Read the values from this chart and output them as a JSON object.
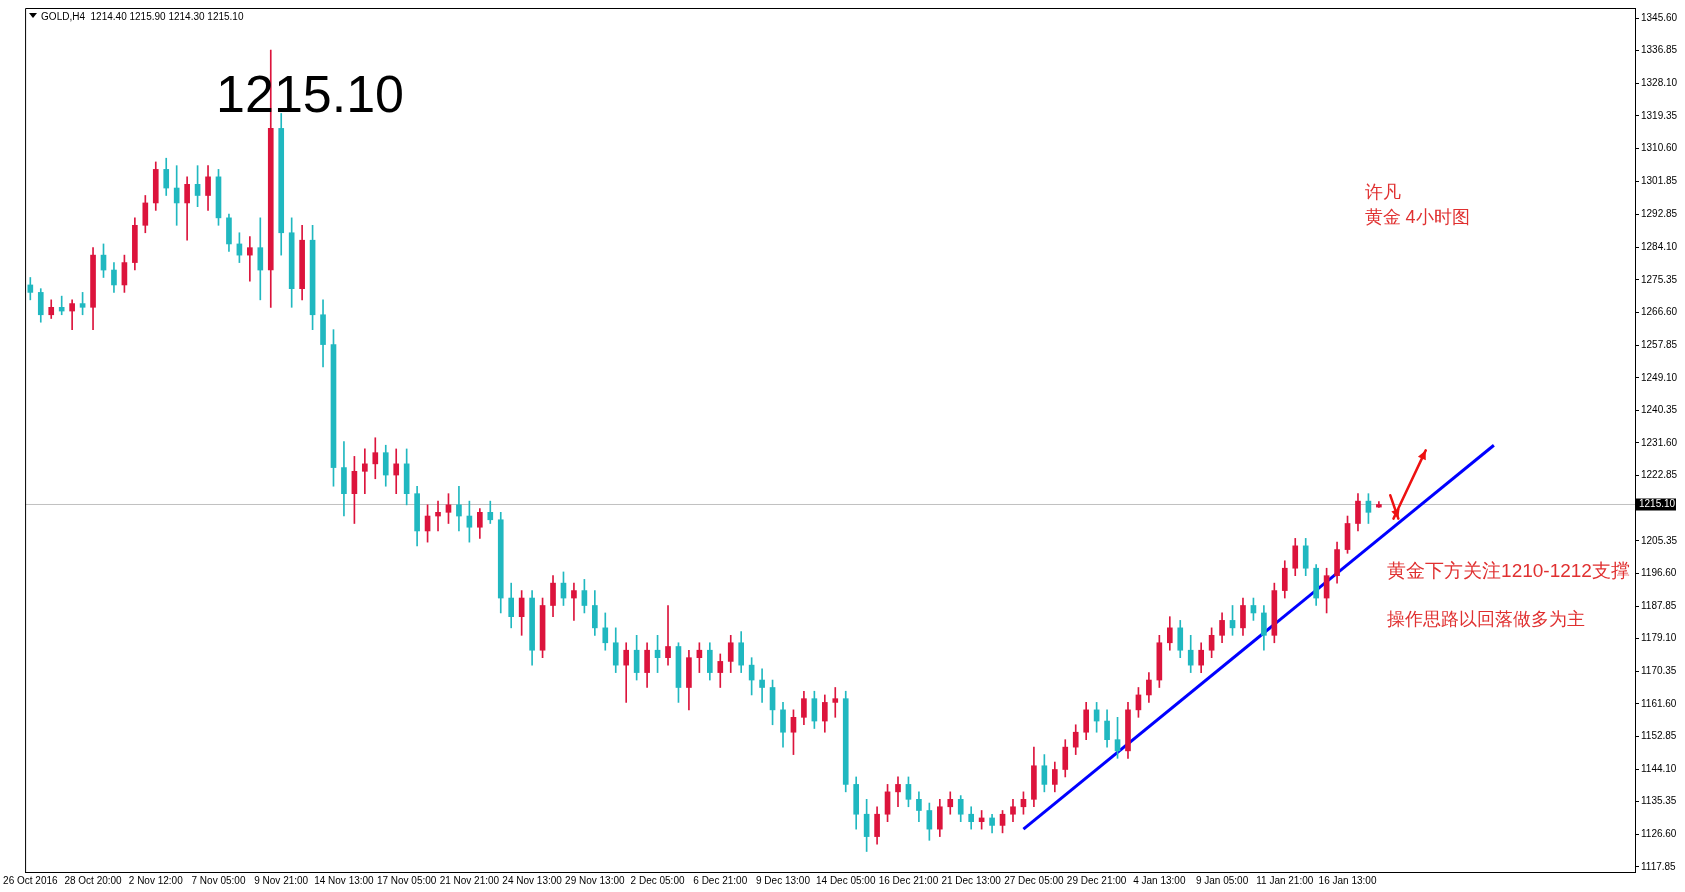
{
  "chart_data": {
    "type": "candlestick",
    "title": "GOLD,H4  1214.40 1215.90 1214.30 1215.10",
    "categories": [
      "26 Oct 2016",
      null,
      null,
      null,
      null,
      null,
      "28 Oct 20:00",
      null,
      null,
      null,
      null,
      null,
      "2 Nov 12:00",
      null,
      null,
      null,
      null,
      null,
      "7 Nov 05:00",
      null,
      null,
      null,
      null,
      null,
      "9 Nov 21:00",
      null,
      null,
      null,
      null,
      null,
      "14 Nov 13:00",
      null,
      null,
      null,
      null,
      null,
      "17 Nov 05:00",
      null,
      null,
      null,
      null,
      null,
      "21 Nov 21:00",
      null,
      null,
      null,
      null,
      null,
      "24 Nov 13:00",
      null,
      null,
      null,
      null,
      null,
      "29 Nov 13:00",
      null,
      null,
      null,
      null,
      null,
      "2 Dec 05:00",
      null,
      null,
      null,
      null,
      null,
      "6 Dec 21:00",
      null,
      null,
      null,
      null,
      null,
      "9 Dec 13:00",
      null,
      null,
      null,
      null,
      null,
      "14 Dec 05:00",
      null,
      null,
      null,
      null,
      null,
      "16 Dec 21:00",
      null,
      null,
      null,
      null,
      null,
      "21 Dec 13:00",
      null,
      null,
      null,
      null,
      null,
      "27 Dec 05:00",
      null,
      null,
      null,
      null,
      null,
      "29 Dec 21:00",
      null,
      null,
      null,
      null,
      null,
      "4 Jan 13:00",
      null,
      null,
      null,
      null,
      null,
      "9 Jan 05:00",
      null,
      null,
      null,
      null,
      null,
      "11 Jan 21:00",
      null,
      null,
      null,
      null,
      null,
      "16 Jan 13:00",
      null,
      null,
      null,
      null,
      null,
      null,
      null,
      null,
      null,
      null,
      null,
      null,
      null,
      null,
      null,
      null,
      null,
      null,
      null,
      null,
      null,
      null,
      null,
      null,
      null,
      null,
      null
    ],
    "ohlc": [
      [
        1274,
        1276,
        1270,
        1272
      ],
      [
        1272,
        1273,
        1264,
        1266
      ],
      [
        1266,
        1270,
        1265,
        1268
      ],
      [
        1268,
        1271,
        1266,
        1267
      ],
      [
        1267,
        1270,
        1262,
        1269
      ],
      [
        1269,
        1272,
        1266,
        1268
      ],
      [
        1268,
        1284,
        1262,
        1282
      ],
      [
        1282,
        1285,
        1276,
        1278
      ],
      [
        1278,
        1280,
        1272,
        1274
      ],
      [
        1274,
        1282,
        1272,
        1280
      ],
      [
        1280,
        1292,
        1278,
        1290
      ],
      [
        1290,
        1298,
        1288,
        1296
      ],
      [
        1296,
        1307,
        1294,
        1305
      ],
      [
        1305,
        1308,
        1298,
        1300
      ],
      [
        1300,
        1306,
        1290,
        1296
      ],
      [
        1296,
        1303,
        1286,
        1301
      ],
      [
        1301,
        1306,
        1295,
        1298
      ],
      [
        1298,
        1306,
        1294,
        1303
      ],
      [
        1303,
        1305,
        1290,
        1292
      ],
      [
        1292,
        1293,
        1283,
        1285
      ],
      [
        1285,
        1288,
        1280,
        1282
      ],
      [
        1282,
        1287,
        1275,
        1284
      ],
      [
        1284,
        1292,
        1270,
        1278
      ],
      [
        1278,
        1337,
        1268,
        1316
      ],
      [
        1316,
        1320,
        1282,
        1288
      ],
      [
        1288,
        1292,
        1268,
        1273
      ],
      [
        1273,
        1290,
        1270,
        1286
      ],
      [
        1286,
        1290,
        1262,
        1266
      ],
      [
        1266,
        1270,
        1252,
        1258
      ],
      [
        1258,
        1262,
        1220,
        1225
      ],
      [
        1225,
        1232,
        1212,
        1218
      ],
      [
        1218,
        1228,
        1210,
        1224
      ],
      [
        1224,
        1230,
        1218,
        1226
      ],
      [
        1226,
        1233,
        1222,
        1229
      ],
      [
        1229,
        1231,
        1220,
        1223
      ],
      [
        1223,
        1230,
        1218,
        1226
      ],
      [
        1226,
        1230,
        1215,
        1218
      ],
      [
        1218,
        1220,
        1204,
        1208
      ],
      [
        1208,
        1215,
        1205,
        1212
      ],
      [
        1212,
        1216,
        1208,
        1213
      ],
      [
        1213,
        1218,
        1210,
        1215
      ],
      [
        1215,
        1220,
        1208,
        1212
      ],
      [
        1212,
        1216,
        1205,
        1209
      ],
      [
        1209,
        1214,
        1206,
        1213
      ],
      [
        1213,
        1216,
        1210,
        1211
      ],
      [
        1211,
        1213,
        1186,
        1190
      ],
      [
        1190,
        1194,
        1182,
        1185
      ],
      [
        1185,
        1192,
        1180,
        1190
      ],
      [
        1190,
        1192,
        1172,
        1176
      ],
      [
        1176,
        1190,
        1174,
        1188
      ],
      [
        1188,
        1196,
        1185,
        1194
      ],
      [
        1194,
        1197,
        1188,
        1190
      ],
      [
        1190,
        1194,
        1184,
        1192
      ],
      [
        1192,
        1195,
        1186,
        1188
      ],
      [
        1188,
        1192,
        1180,
        1182
      ],
      [
        1182,
        1186,
        1176,
        1178
      ],
      [
        1178,
        1182,
        1170,
        1172
      ],
      [
        1172,
        1178,
        1162,
        1176
      ],
      [
        1176,
        1180,
        1168,
        1170
      ],
      [
        1170,
        1178,
        1166,
        1176
      ],
      [
        1176,
        1180,
        1170,
        1174
      ],
      [
        1174,
        1188,
        1172,
        1177
      ],
      [
        1177,
        1178,
        1162,
        1166
      ],
      [
        1166,
        1176,
        1160,
        1174
      ],
      [
        1174,
        1178,
        1170,
        1176
      ],
      [
        1176,
        1178,
        1168,
        1170
      ],
      [
        1170,
        1175,
        1166,
        1173
      ],
      [
        1173,
        1180,
        1170,
        1178
      ],
      [
        1178,
        1181,
        1170,
        1172
      ],
      [
        1172,
        1174,
        1164,
        1168
      ],
      [
        1168,
        1171,
        1162,
        1166
      ],
      [
        1166,
        1168,
        1156,
        1160
      ],
      [
        1160,
        1162,
        1150,
        1154
      ],
      [
        1154,
        1160,
        1148,
        1158
      ],
      [
        1158,
        1165,
        1156,
        1163
      ],
      [
        1163,
        1165,
        1155,
        1157
      ],
      [
        1157,
        1164,
        1154,
        1162
      ],
      [
        1162,
        1166,
        1158,
        1163
      ],
      [
        1163,
        1165,
        1138,
        1140
      ],
      [
        1140,
        1142,
        1128,
        1132
      ],
      [
        1132,
        1136,
        1122,
        1126
      ],
      [
        1126,
        1134,
        1124,
        1132
      ],
      [
        1132,
        1140,
        1130,
        1138
      ],
      [
        1138,
        1142,
        1134,
        1140
      ],
      [
        1140,
        1142,
        1134,
        1136
      ],
      [
        1136,
        1138,
        1130,
        1133
      ],
      [
        1133,
        1135,
        1125,
        1128
      ],
      [
        1128,
        1136,
        1126,
        1134
      ],
      [
        1134,
        1138,
        1132,
        1136
      ],
      [
        1136,
        1137,
        1130,
        1132
      ],
      [
        1132,
        1134,
        1128,
        1130
      ],
      [
        1130,
        1133,
        1128,
        1131
      ],
      [
        1131,
        1132,
        1127,
        1129
      ],
      [
        1129,
        1133,
        1127,
        1132
      ],
      [
        1132,
        1136,
        1130,
        1134
      ],
      [
        1134,
        1138,
        1132,
        1136
      ],
      [
        1136,
        1150,
        1134,
        1145
      ],
      [
        1145,
        1148,
        1138,
        1140
      ],
      [
        1140,
        1146,
        1138,
        1144
      ],
      [
        1144,
        1152,
        1142,
        1150
      ],
      [
        1150,
        1156,
        1148,
        1154
      ],
      [
        1154,
        1162,
        1152,
        1160
      ],
      [
        1160,
        1162,
        1154,
        1157
      ],
      [
        1157,
        1160,
        1150,
        1152
      ],
      [
        1152,
        1158,
        1147,
        1149
      ],
      [
        1149,
        1162,
        1147,
        1160
      ],
      [
        1160,
        1166,
        1158,
        1164
      ],
      [
        1164,
        1170,
        1162,
        1168
      ],
      [
        1168,
        1180,
        1166,
        1178
      ],
      [
        1178,
        1185,
        1176,
        1182
      ],
      [
        1182,
        1184,
        1174,
        1176
      ],
      [
        1176,
        1180,
        1170,
        1172
      ],
      [
        1172,
        1178,
        1170,
        1176
      ],
      [
        1176,
        1182,
        1174,
        1180
      ],
      [
        1180,
        1186,
        1178,
        1184
      ],
      [
        1184,
        1188,
        1180,
        1182
      ],
      [
        1182,
        1190,
        1180,
        1188
      ],
      [
        1188,
        1190,
        1184,
        1186
      ],
      [
        1186,
        1188,
        1176,
        1180
      ],
      [
        1180,
        1194,
        1178,
        1192
      ],
      [
        1192,
        1200,
        1190,
        1198
      ],
      [
        1198,
        1206,
        1196,
        1204
      ],
      [
        1204,
        1206,
        1196,
        1198
      ],
      [
        1198,
        1199,
        1188,
        1190
      ],
      [
        1190,
        1198,
        1186,
        1196
      ],
      [
        1196,
        1205,
        1194,
        1203
      ],
      [
        1203,
        1212,
        1202,
        1210
      ],
      [
        1210,
        1218,
        1208,
        1216
      ],
      [
        1216,
        1218,
        1210,
        1213
      ],
      [
        1214.4,
        1215.9,
        1214.3,
        1215.1
      ],
      null,
      null,
      null,
      null,
      null,
      null,
      null,
      null,
      null,
      null,
      null,
      null,
      null,
      null,
      null,
      null,
      null,
      null,
      null,
      null,
      null,
      null,
      null,
      null
    ],
    "colors": [
      "#20b8c0",
      "#20b8c0",
      "#dc143c",
      "#20b8c0",
      "#dc143c",
      "#20b8c0",
      "#dc143c",
      "#20b8c0",
      "#20b8c0",
      "#dc143c",
      "#dc143c",
      "#dc143c",
      "#dc143c",
      "#20b8c0",
      "#20b8c0",
      "#dc143c",
      "#20b8c0",
      "#dc143c",
      "#20b8c0",
      "#20b8c0",
      "#20b8c0",
      "#dc143c",
      "#20b8c0",
      "#dc143c",
      "#20b8c0",
      "#20b8c0",
      "#dc143c",
      "#20b8c0",
      "#20b8c0",
      "#20b8c0",
      "#20b8c0",
      "#dc143c",
      "#dc143c",
      "#dc143c",
      "#20b8c0",
      "#dc143c",
      "#20b8c0",
      "#20b8c0",
      "#dc143c",
      "#dc143c",
      "#dc143c",
      "#20b8c0",
      "#20b8c0",
      "#dc143c",
      "#20b8c0",
      "#20b8c0",
      "#20b8c0",
      "#dc143c",
      "#20b8c0",
      "#dc143c",
      "#dc143c",
      "#20b8c0",
      "#dc143c",
      "#20b8c0",
      "#20b8c0",
      "#20b8c0",
      "#20b8c0",
      "#dc143c",
      "#20b8c0",
      "#dc143c",
      "#20b8c0",
      "#dc143c",
      "#20b8c0",
      "#dc143c",
      "#dc143c",
      "#20b8c0",
      "#dc143c",
      "#dc143c",
      "#20b8c0",
      "#20b8c0",
      "#20b8c0",
      "#20b8c0",
      "#20b8c0",
      "#dc143c",
      "#dc143c",
      "#20b8c0",
      "#dc143c",
      "#dc143c",
      "#20b8c0",
      "#20b8c0",
      "#20b8c0",
      "#dc143c",
      "#dc143c",
      "#dc143c",
      "#20b8c0",
      "#20b8c0",
      "#20b8c0",
      "#dc143c",
      "#dc143c",
      "#20b8c0",
      "#20b8c0",
      "#dc143c",
      "#20b8c0",
      "#dc143c",
      "#dc143c",
      "#dc143c",
      "#dc143c",
      "#20b8c0",
      "#dc143c",
      "#dc143c",
      "#dc143c",
      "#dc143c",
      "#20b8c0",
      "#20b8c0",
      "#20b8c0",
      "#dc143c",
      "#dc143c",
      "#dc143c",
      "#dc143c",
      "#dc143c",
      "#20b8c0",
      "#20b8c0",
      "#dc143c",
      "#dc143c",
      "#dc143c",
      "#20b8c0",
      "#dc143c",
      "#20b8c0",
      "#20b8c0",
      "#dc143c",
      "#dc143c",
      "#dc143c",
      "#20b8c0",
      "#20b8c0",
      "#dc143c",
      "#dc143c",
      "#dc143c",
      "#dc143c",
      "#20b8c0",
      "#dc143c",
      null,
      null,
      null,
      null,
      null,
      null,
      null,
      null,
      null,
      null,
      null,
      null,
      null,
      null,
      null,
      null,
      null,
      null,
      null,
      null,
      null,
      null,
      null,
      null
    ],
    "series": [
      {
        "type": "line",
        "color": "#0000ff",
        "values": [
          null,
          null,
          null,
          null,
          null,
          null,
          null,
          null,
          null,
          null,
          null,
          null,
          null,
          null,
          null,
          null,
          null,
          null,
          null,
          null,
          null,
          null,
          null,
          null,
          null,
          null,
          null,
          null,
          null,
          null,
          null,
          null,
          null,
          null,
          null,
          null,
          null,
          null,
          null,
          null,
          null,
          null,
          null,
          null,
          null,
          null,
          null,
          null,
          null,
          null,
          null,
          null,
          null,
          null,
          null,
          null,
          null,
          null,
          null,
          null,
          null,
          null,
          null,
          null,
          null,
          null,
          null,
          null,
          null,
          null,
          null,
          null,
          null,
          null,
          null,
          null,
          null,
          null,
          null,
          null,
          null,
          null,
          null,
          null,
          null,
          null,
          null,
          null,
          null,
          null,
          null,
          null,
          null,
          null,
          null,
          1128,
          null,
          null,
          null,
          null,
          null,
          null,
          null,
          null,
          null,
          null,
          null,
          null,
          null,
          null,
          null,
          null,
          null,
          null,
          null,
          null,
          null,
          null,
          null,
          null,
          null,
          null,
          null,
          null,
          null,
          null,
          null,
          null,
          null,
          null,
          null,
          null,
          null,
          null,
          null,
          null,
          null,
          null,
          null,
          null,
          1231,
          null,
          null,
          null,
          null,
          null,
          null,
          null,
          null,
          null,
          null,
          null,
          null,
          null
        ]
      }
    ],
    "ylim": [
      1116.5,
      1348.3
    ],
    "yticks": [
      {
        "value": 1345.6,
        "label": "1345.60"
      },
      1336.85,
      {
        "value": 1328.1,
        "label": "1328.10"
      },
      1319.35,
      {
        "value": 1310.6,
        "label": "1310.60"
      },
      1301.85,
      1292.85,
      {
        "value": 1284.1,
        "label": "1284.10"
      },
      1275.35,
      {
        "value": 1266.6,
        "label": "1266.60"
      },
      1257.85,
      {
        "value": 1249.1,
        "label": "1249.10"
      },
      1240.35,
      {
        "value": 1231.6,
        "label": "1231.60"
      },
      1222.85,
      1205.35,
      {
        "value": 1196.6,
        "label": "1196.60"
      },
      1187.85,
      {
        "value": 1179.1,
        "label": "1179.10"
      },
      1170.35,
      {
        "value": 1161.6,
        "label": "1161.60"
      },
      1152.85,
      {
        "value": 1144.1,
        "label": "1144.10"
      },
      1135.35,
      {
        "value": 1126.6,
        "label": "1126.60"
      },
      1117.85
    ],
    "ref_lines": [
      {
        "axis": "y",
        "value": 1215.1,
        "label": "1215.10",
        "color": "#c0c0c0"
      }
    ],
    "annotations": [
      "1215.10",
      "许凡",
      "黄金 4小时图",
      "黄金下方关注1210-1212支撑",
      "操作思路以回落做多为主"
    ]
  }
}
